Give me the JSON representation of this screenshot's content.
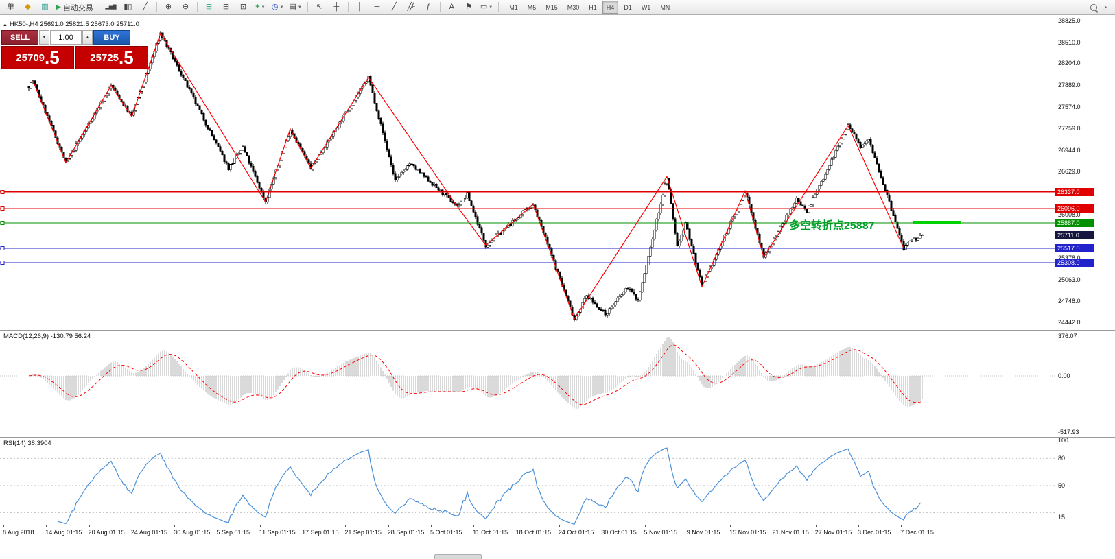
{
  "toolbar": {
    "new_order_label": "单",
    "autotrade_label": "自动交易",
    "timeframes": [
      "M1",
      "M5",
      "M15",
      "M30",
      "H1",
      "H4",
      "D1",
      "W1",
      "MN"
    ],
    "active_timeframe": "H4"
  },
  "trade_panel": {
    "sell_label": "SELL",
    "buy_label": "BUY",
    "volume": "1.00",
    "sell_price_main": "25709",
    "sell_price_frac": ".5",
    "buy_price_main": "25725",
    "buy_price_frac": ".5"
  },
  "chart": {
    "info_line": "HK50-,H4  25691.0 25821.5 25673.0 25711.0",
    "annotation_text": "多空转折点25887"
  },
  "chart_data": {
    "type": "candlestick",
    "symbol": "HK50-",
    "timeframe": "H4",
    "ohlc_current": {
      "open": 25691.0,
      "high": 25821.5,
      "low": 25673.0,
      "close": 25711.0
    },
    "bars": 435,
    "seed": 7,
    "price_axis": {
      "min": 24442.0,
      "max": 28825.0,
      "ticks": [
        28825.0,
        28510.0,
        28204.0,
        27889.0,
        27574.0,
        27259.0,
        26944.0,
        26629.0,
        26314.0,
        26008.0,
        25693.0,
        25378.0,
        25063.0,
        24748.0,
        24442.0
      ]
    },
    "levels": [
      {
        "price": 26337.0,
        "label": "26337.0",
        "color": "#e00000"
      },
      {
        "price": 26096.0,
        "label": "26096.0",
        "color": "#e00000"
      },
      {
        "price": 25887.0,
        "label": "25887.0",
        "color": "#009000",
        "thick_segment": true
      },
      {
        "price": 25517.0,
        "label": "25517.0",
        "color": "#2222cc"
      },
      {
        "price": 25308.0,
        "label": "25308.0",
        "color": "#2222cc"
      }
    ],
    "current_price": {
      "value": 25711.0,
      "label": "25711.0",
      "color": "#16163f"
    },
    "swings": [
      [
        0,
        27870
      ],
      [
        2,
        27950
      ],
      [
        18,
        26760
      ],
      [
        40,
        27880
      ],
      [
        50,
        27430
      ],
      [
        64,
        28640
      ],
      [
        97,
        26680
      ],
      [
        104,
        26980
      ],
      [
        115,
        26190
      ],
      [
        127,
        27250
      ],
      [
        137,
        26680
      ],
      [
        165,
        28000
      ],
      [
        178,
        26500
      ],
      [
        185,
        26750
      ],
      [
        208,
        26130
      ],
      [
        213,
        26300
      ],
      [
        222,
        25560
      ],
      [
        245,
        26160
      ],
      [
        265,
        24490
      ],
      [
        271,
        24830
      ],
      [
        280,
        24560
      ],
      [
        291,
        24950
      ],
      [
        296,
        24760
      ],
      [
        310,
        26560
      ],
      [
        315,
        25540
      ],
      [
        319,
        25900
      ],
      [
        327,
        24960
      ],
      [
        348,
        26350
      ],
      [
        357,
        25390
      ],
      [
        373,
        26240
      ],
      [
        378,
        26050
      ],
      [
        398,
        27300
      ],
      [
        404,
        27000
      ],
      [
        408,
        27120
      ],
      [
        425,
        25520
      ],
      [
        430,
        25640
      ],
      [
        434,
        25711
      ]
    ],
    "zigzag": [
      [
        2,
        27950
      ],
      [
        18,
        26760
      ],
      [
        40,
        27880
      ],
      [
        50,
        27430
      ],
      [
        64,
        28640
      ],
      [
        115,
        26190
      ],
      [
        127,
        27250
      ],
      [
        137,
        26680
      ],
      [
        165,
        28000
      ],
      [
        208,
        26130
      ],
      [
        222,
        25560
      ],
      [
        245,
        26160
      ],
      [
        265,
        24490
      ],
      [
        310,
        26560
      ],
      [
        327,
        24960
      ],
      [
        348,
        26350
      ],
      [
        357,
        25390
      ],
      [
        398,
        27300
      ],
      [
        425,
        25520
      ]
    ],
    "macd": {
      "label": "MACD(12,26,9) -130.79 56.24",
      "params": [
        12,
        26,
        9
      ],
      "value": -130.79,
      "signal_value": 56.24,
      "scale_labels": [
        "376.07",
        "0.00",
        "-517.93"
      ]
    },
    "rsi": {
      "label": "RSI(14) 38.3904",
      "period": 14,
      "value": 38.3904,
      "scale_labels": [
        {
          "v": 100,
          "t": "100"
        },
        {
          "v": 80,
          "t": "80"
        },
        {
          "v": 50,
          "t": "50"
        },
        {
          "v": 15,
          "t": "15"
        }
      ]
    },
    "time_labels": [
      "8 Aug 2018",
      "14 Aug 01:15",
      "20 Aug 01:15",
      "24 Aug 01:15",
      "30 Aug 01:15",
      "5 Sep 01:15",
      "11 Sep 01:15",
      "17 Sep 01:15",
      "21 Sep 01:15",
      "28 Sep 01:15",
      "5 Oct 01:15",
      "11 Oct 01:15",
      "18 Oct 01:15",
      "24 Oct 01:15",
      "30 Oct 01:15",
      "5 Nov 01:15",
      "9 Nov 01:15",
      "15 Nov 01:15",
      "21 Nov 01:15",
      "27 Nov 01:15",
      "3 Dec 01:15",
      "7 Dec 01:15"
    ],
    "colors": {
      "bull": "#ffffff",
      "bear": "#000000",
      "zigzag": "#ff0000",
      "macd_hist": "#b6b6b6",
      "macd_signal": "#ff0000",
      "rsi_line": "#4a90d9",
      "thick_segment": "#00d200"
    }
  }
}
